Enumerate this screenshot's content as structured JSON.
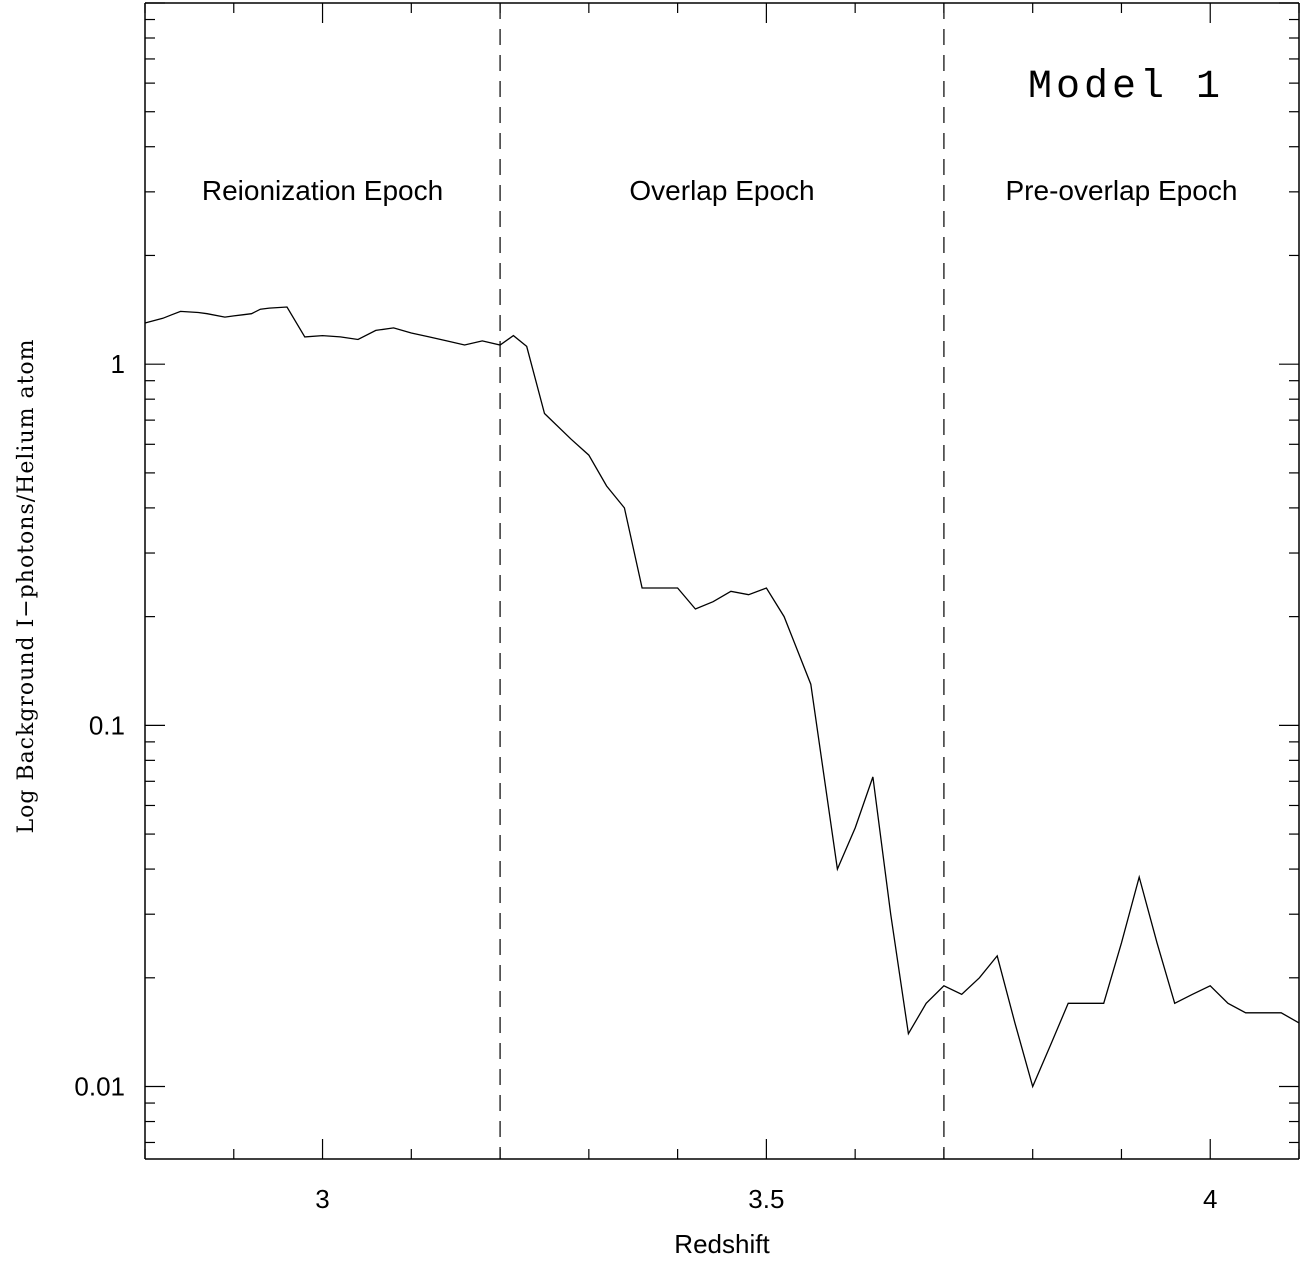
{
  "chart_data": {
    "type": "line",
    "title": "",
    "annotation": "Model 1",
    "xlabel": "Redshift",
    "ylabel": "Log Background I−photons/Helium atom",
    "xlim": [
      2.8,
      4.1
    ],
    "ylim": [
      0.0063,
      10.0
    ],
    "yscale": "log",
    "grid": false,
    "x_ticks": [
      {
        "value": 3,
        "label": "3"
      },
      {
        "value": 3.5,
        "label": "3.5"
      },
      {
        "value": 4,
        "label": "4"
      }
    ],
    "y_ticks": [
      {
        "value": 1,
        "label": "1"
      },
      {
        "value": 0.1,
        "label": "0.1"
      },
      {
        "value": 0.01,
        "label": "0.01"
      }
    ],
    "regions": [
      {
        "label": "Reionization Epoch",
        "x_from": 2.8,
        "x_to": 3.2
      },
      {
        "label": "Overlap Epoch",
        "x_from": 3.2,
        "x_to": 3.7
      },
      {
        "label": "Pre-overlap Epoch",
        "x_from": 3.7,
        "x_to": 4.1
      }
    ],
    "dividers": [
      3.2,
      3.7
    ],
    "series": [
      {
        "x": [
          2.8,
          2.81,
          2.82,
          2.83,
          2.84,
          2.86,
          2.87,
          2.89,
          2.9,
          2.91,
          2.92,
          2.93,
          2.94,
          2.96,
          2.98,
          3.0,
          3.02,
          3.04,
          3.06,
          3.08,
          3.1,
          3.12,
          3.14,
          3.16,
          3.18,
          3.2,
          3.215,
          3.23,
          3.25,
          3.28,
          3.3,
          3.32,
          3.34,
          3.36,
          3.38,
          3.4,
          3.42,
          3.44,
          3.46,
          3.48,
          3.5,
          3.52,
          3.55,
          3.58,
          3.6,
          3.62,
          3.64,
          3.66,
          3.68,
          3.7,
          3.72,
          3.74,
          3.76,
          3.78,
          3.8,
          3.82,
          3.84,
          3.86,
          3.88,
          3.9,
          3.92,
          3.94,
          3.96,
          3.98,
          4.0,
          4.02,
          4.04,
          4.06,
          4.08,
          4.1
        ],
        "y": [
          1.3,
          1.32,
          1.34,
          1.37,
          1.4,
          1.39,
          1.38,
          1.35,
          1.36,
          1.37,
          1.38,
          1.42,
          1.43,
          1.44,
          1.19,
          1.2,
          1.19,
          1.17,
          1.24,
          1.26,
          1.22,
          1.19,
          1.16,
          1.13,
          1.16,
          1.13,
          1.2,
          1.12,
          0.73,
          0.62,
          0.56,
          0.46,
          0.4,
          0.24,
          0.24,
          0.24,
          0.21,
          0.22,
          0.235,
          0.23,
          0.24,
          0.2,
          0.13,
          0.04,
          0.052,
          0.072,
          0.03,
          0.014,
          0.017,
          0.019,
          0.018,
          0.02,
          0.023,
          0.015,
          0.01,
          0.013,
          0.017,
          0.017,
          0.017,
          0.025,
          0.038,
          0.025,
          0.017,
          0.018,
          0.019,
          0.017,
          0.016,
          0.016,
          0.016,
          0.015
        ]
      }
    ]
  }
}
